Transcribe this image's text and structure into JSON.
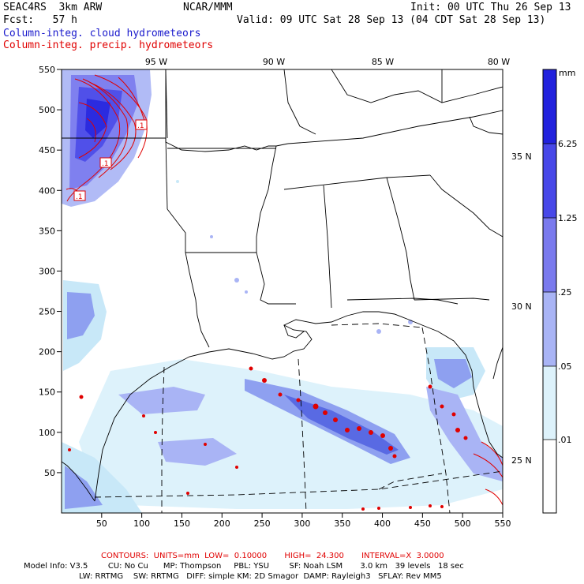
{
  "header": {
    "model": "SEAC4RS  3km ARW",
    "center": "NCAR/MMM",
    "init": "Init: 00 UTC Thu 26 Sep 13",
    "fcst": "Fcst:   57 h",
    "valid": "Valid: 09 UTC Sat 28 Sep 13 (04 CDT Sat 28 Sep 13)",
    "field_cloud": "Column-integ. cloud hydrometeors",
    "field_precip": "Column-integ. precip. hydrometeors"
  },
  "map": {
    "lon_labels": [
      "95 W",
      "90 W",
      "85 W",
      "80 W"
    ],
    "lat_labels": [
      "35 N",
      "30 N",
      "25 N"
    ],
    "y_ticks": [
      "550",
      "500",
      "450",
      "400",
      "350",
      "300",
      "250",
      "200",
      "150",
      "100",
      "50"
    ],
    "x_ticks": [
      "50",
      "100",
      "150",
      "200",
      "250",
      "300",
      "350",
      "400",
      "450",
      "500",
      "550"
    ],
    "contour_labels": [
      ".1",
      ".1",
      ".1"
    ]
  },
  "colorbar": {
    "unit": "mm",
    "levels": [
      "6.25",
      "1.25",
      ".25",
      ".05",
      ".01"
    ],
    "colors": [
      "#2222dd",
      "#4848e8",
      "#7a7aee",
      "#a9b4f5",
      "#ddf2fb",
      "#ffffff"
    ]
  },
  "colors": {
    "cloud_light": "#c8e8f8",
    "cloud_mid": "#8ea0f0",
    "cloud_dark": "#5060e0",
    "precip": "#e00000"
  },
  "footer": {
    "contours": "CONTOURS:  UNITS=mm  LOW=  0.10000       HIGH=  24.300       INTERVAL=X  3.0000",
    "model_info_1": "Model Info: V3.5        CU: No Cu      MP: Thompson     PBL: YSU        SF: Noah LSM       3.0 km   39 levels   18 sec",
    "model_info_2": "LW: RRTMG    SW: RRTMG   DIFF: simple KM: 2D Smagor  DAMP: Rayleigh3   SFLAY: Rev MM5"
  }
}
